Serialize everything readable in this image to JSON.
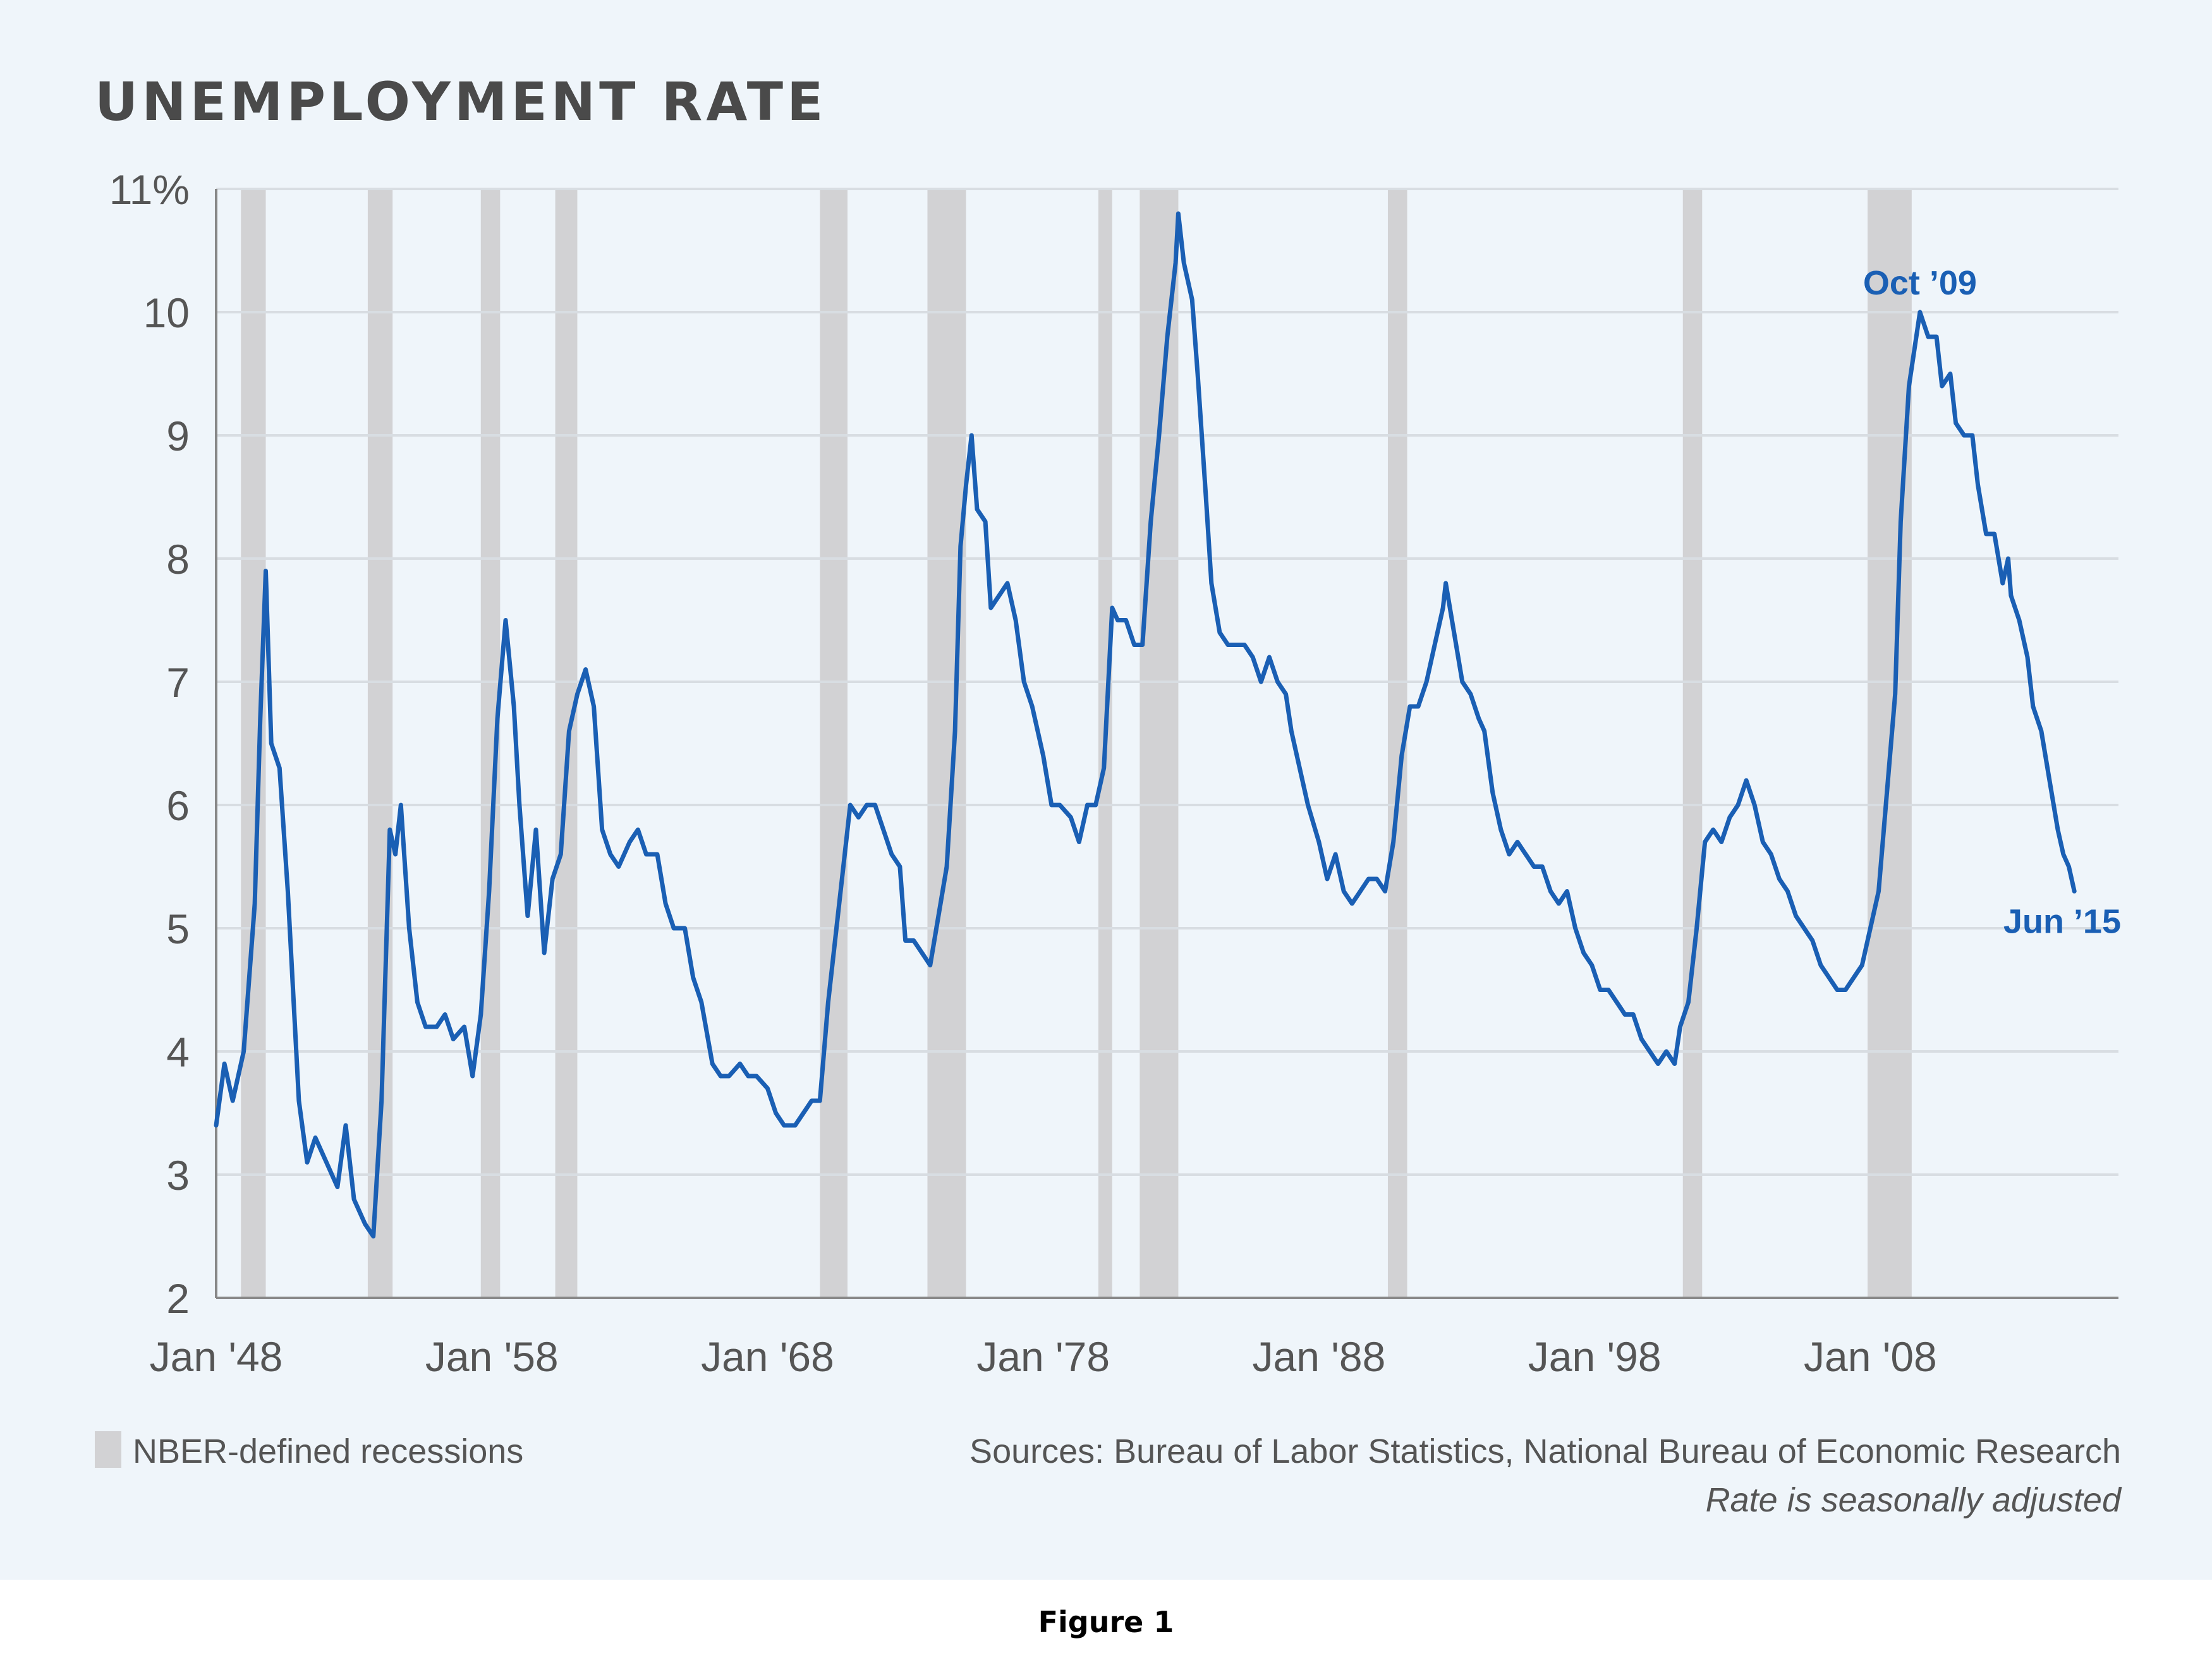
{
  "caption": "Figure 1",
  "legend": {
    "label": "NBER-defined recessions"
  },
  "footer": {
    "sources": "Sources: Bureau of Labor Statistics, National Bureau of Economic Research",
    "note": "Rate is seasonally adjusted"
  },
  "colors": {
    "line": "#1a5fb4",
    "recession": "#d2d2d4",
    "grid": "#d8dde2",
    "axis": "#888888",
    "background": "#eff5fa"
  },
  "chart_data": {
    "type": "line",
    "title": "UNEMPLOYMENT RATE",
    "xlabel": "",
    "ylabel": "",
    "ylim": [
      2,
      11
    ],
    "xlim": [
      1948.0,
      2017.0
    ],
    "y_ticks": [
      {
        "value": 2,
        "label": "2"
      },
      {
        "value": 3,
        "label": "3"
      },
      {
        "value": 4,
        "label": "4"
      },
      {
        "value": 5,
        "label": "5"
      },
      {
        "value": 6,
        "label": "6"
      },
      {
        "value": 7,
        "label": "7"
      },
      {
        "value": 8,
        "label": "8"
      },
      {
        "value": 9,
        "label": "9"
      },
      {
        "value": 10,
        "label": "10"
      },
      {
        "value": 11,
        "label": "11%"
      }
    ],
    "x_ticks": [
      {
        "value": 1948.0,
        "label": "Jan '48"
      },
      {
        "value": 1958.0,
        "label": "Jan '58"
      },
      {
        "value": 1968.0,
        "label": "Jan '68"
      },
      {
        "value": 1978.0,
        "label": "Jan '78"
      },
      {
        "value": 1988.0,
        "label": "Jan '88"
      },
      {
        "value": 1998.0,
        "label": "Jan '98"
      },
      {
        "value": 2008.0,
        "label": "Jan '08"
      }
    ],
    "grid": true,
    "legend_position": "bottom-left",
    "recessions": [
      [
        1948.9,
        1949.8
      ],
      [
        1953.5,
        1954.4
      ],
      [
        1957.6,
        1958.3
      ],
      [
        1960.3,
        1961.1
      ],
      [
        1969.9,
        1970.9
      ],
      [
        1973.8,
        1975.2
      ],
      [
        1980.0,
        1980.5
      ],
      [
        1981.5,
        1982.9
      ],
      [
        1990.5,
        1991.2
      ],
      [
        2001.2,
        2001.9
      ],
      [
        2007.9,
        2009.5
      ]
    ],
    "series": [
      {
        "values": [
          [
            1948.0,
            3.4
          ],
          [
            1948.3,
            3.9
          ],
          [
            1948.6,
            3.6
          ],
          [
            1949.0,
            4.0
          ],
          [
            1949.4,
            5.2
          ],
          [
            1949.6,
            6.7
          ],
          [
            1949.8,
            7.9
          ],
          [
            1950.0,
            6.5
          ],
          [
            1950.3,
            6.3
          ],
          [
            1950.6,
            5.3
          ],
          [
            1951.0,
            3.6
          ],
          [
            1951.3,
            3.1
          ],
          [
            1951.6,
            3.3
          ],
          [
            1952.0,
            3.1
          ],
          [
            1952.4,
            2.9
          ],
          [
            1952.7,
            3.4
          ],
          [
            1953.0,
            2.8
          ],
          [
            1953.4,
            2.6
          ],
          [
            1953.7,
            2.5
          ],
          [
            1954.0,
            3.6
          ],
          [
            1954.3,
            5.8
          ],
          [
            1954.5,
            5.6
          ],
          [
            1954.7,
            6.0
          ],
          [
            1955.0,
            5.0
          ],
          [
            1955.3,
            4.4
          ],
          [
            1955.6,
            4.2
          ],
          [
            1956.0,
            4.2
          ],
          [
            1956.3,
            4.3
          ],
          [
            1956.6,
            4.1
          ],
          [
            1957.0,
            4.2
          ],
          [
            1957.3,
            3.8
          ],
          [
            1957.6,
            4.3
          ],
          [
            1957.9,
            5.3
          ],
          [
            1958.2,
            6.7
          ],
          [
            1958.5,
            7.5
          ],
          [
            1958.8,
            6.8
          ],
          [
            1959.0,
            6.0
          ],
          [
            1959.3,
            5.1
          ],
          [
            1959.6,
            5.8
          ],
          [
            1959.9,
            4.8
          ],
          [
            1960.2,
            5.4
          ],
          [
            1960.5,
            5.6
          ],
          [
            1960.8,
            6.6
          ],
          [
            1961.1,
            6.9
          ],
          [
            1961.4,
            7.1
          ],
          [
            1961.7,
            6.8
          ],
          [
            1962.0,
            5.8
          ],
          [
            1962.3,
            5.6
          ],
          [
            1962.6,
            5.5
          ],
          [
            1963.0,
            5.7
          ],
          [
            1963.3,
            5.8
          ],
          [
            1963.6,
            5.6
          ],
          [
            1964.0,
            5.6
          ],
          [
            1964.3,
            5.2
          ],
          [
            1964.6,
            5.0
          ],
          [
            1965.0,
            5.0
          ],
          [
            1965.3,
            4.6
          ],
          [
            1965.6,
            4.4
          ],
          [
            1966.0,
            3.9
          ],
          [
            1966.3,
            3.8
          ],
          [
            1966.6,
            3.8
          ],
          [
            1967.0,
            3.9
          ],
          [
            1967.3,
            3.8
          ],
          [
            1967.6,
            3.8
          ],
          [
            1968.0,
            3.7
          ],
          [
            1968.3,
            3.5
          ],
          [
            1968.6,
            3.4
          ],
          [
            1969.0,
            3.4
          ],
          [
            1969.3,
            3.5
          ],
          [
            1969.6,
            3.6
          ],
          [
            1969.9,
            3.6
          ],
          [
            1970.2,
            4.4
          ],
          [
            1970.5,
            5.0
          ],
          [
            1970.8,
            5.6
          ],
          [
            1971.0,
            6.0
          ],
          [
            1971.3,
            5.9
          ],
          [
            1971.6,
            6.0
          ],
          [
            1971.9,
            6.0
          ],
          [
            1972.2,
            5.8
          ],
          [
            1972.5,
            5.6
          ],
          [
            1972.8,
            5.5
          ],
          [
            1973.0,
            4.9
          ],
          [
            1973.3,
            4.9
          ],
          [
            1973.6,
            4.8
          ],
          [
            1973.9,
            4.7
          ],
          [
            1974.2,
            5.1
          ],
          [
            1974.5,
            5.5
          ],
          [
            1974.8,
            6.6
          ],
          [
            1975.0,
            8.1
          ],
          [
            1975.2,
            8.6
          ],
          [
            1975.4,
            9.0
          ],
          [
            1975.6,
            8.4
          ],
          [
            1975.9,
            8.3
          ],
          [
            1976.1,
            7.6
          ],
          [
            1976.4,
            7.7
          ],
          [
            1976.7,
            7.8
          ],
          [
            1977.0,
            7.5
          ],
          [
            1977.3,
            7.0
          ],
          [
            1977.6,
            6.8
          ],
          [
            1978.0,
            6.4
          ],
          [
            1978.3,
            6.0
          ],
          [
            1978.6,
            6.0
          ],
          [
            1979.0,
            5.9
          ],
          [
            1979.3,
            5.7
          ],
          [
            1979.6,
            6.0
          ],
          [
            1979.9,
            6.0
          ],
          [
            1980.2,
            6.3
          ],
          [
            1980.5,
            7.6
          ],
          [
            1980.7,
            7.5
          ],
          [
            1981.0,
            7.5
          ],
          [
            1981.3,
            7.3
          ],
          [
            1981.6,
            7.3
          ],
          [
            1981.9,
            8.3
          ],
          [
            1982.2,
            9.0
          ],
          [
            1982.5,
            9.8
          ],
          [
            1982.8,
            10.4
          ],
          [
            1982.9,
            10.8
          ],
          [
            1983.1,
            10.4
          ],
          [
            1983.4,
            10.1
          ],
          [
            1983.6,
            9.5
          ],
          [
            1983.9,
            8.5
          ],
          [
            1984.1,
            7.8
          ],
          [
            1984.4,
            7.4
          ],
          [
            1984.7,
            7.3
          ],
          [
            1985.0,
            7.3
          ],
          [
            1985.3,
            7.3
          ],
          [
            1985.6,
            7.2
          ],
          [
            1985.9,
            7.0
          ],
          [
            1986.2,
            7.2
          ],
          [
            1986.5,
            7.0
          ],
          [
            1986.8,
            6.9
          ],
          [
            1987.0,
            6.6
          ],
          [
            1987.3,
            6.3
          ],
          [
            1987.6,
            6.0
          ],
          [
            1988.0,
            5.7
          ],
          [
            1988.3,
            5.4
          ],
          [
            1988.6,
            5.6
          ],
          [
            1988.9,
            5.3
          ],
          [
            1989.2,
            5.2
          ],
          [
            1989.5,
            5.3
          ],
          [
            1989.8,
            5.4
          ],
          [
            1990.1,
            5.4
          ],
          [
            1990.4,
            5.3
          ],
          [
            1990.7,
            5.7
          ],
          [
            1991.0,
            6.4
          ],
          [
            1991.3,
            6.8
          ],
          [
            1991.6,
            6.8
          ],
          [
            1991.9,
            7.0
          ],
          [
            1992.2,
            7.3
          ],
          [
            1992.5,
            7.6
          ],
          [
            1992.6,
            7.8
          ],
          [
            1992.9,
            7.4
          ],
          [
            1993.2,
            7.0
          ],
          [
            1993.5,
            6.9
          ],
          [
            1993.8,
            6.7
          ],
          [
            1994.0,
            6.6
          ],
          [
            1994.3,
            6.1
          ],
          [
            1994.6,
            5.8
          ],
          [
            1994.9,
            5.6
          ],
          [
            1995.2,
            5.7
          ],
          [
            1995.5,
            5.6
          ],
          [
            1995.8,
            5.5
          ],
          [
            1996.1,
            5.5
          ],
          [
            1996.4,
            5.3
          ],
          [
            1996.7,
            5.2
          ],
          [
            1997.0,
            5.3
          ],
          [
            1997.3,
            5.0
          ],
          [
            1997.6,
            4.8
          ],
          [
            1997.9,
            4.7
          ],
          [
            1998.2,
            4.5
          ],
          [
            1998.5,
            4.5
          ],
          [
            1998.8,
            4.4
          ],
          [
            1999.1,
            4.3
          ],
          [
            1999.4,
            4.3
          ],
          [
            1999.7,
            4.1
          ],
          [
            2000.0,
            4.0
          ],
          [
            2000.3,
            3.9
          ],
          [
            2000.6,
            4.0
          ],
          [
            2000.9,
            3.9
          ],
          [
            2001.1,
            4.2
          ],
          [
            2001.4,
            4.4
          ],
          [
            2001.7,
            5.0
          ],
          [
            2002.0,
            5.7
          ],
          [
            2002.3,
            5.8
          ],
          [
            2002.6,
            5.7
          ],
          [
            2002.9,
            5.9
          ],
          [
            2003.2,
            6.0
          ],
          [
            2003.5,
            6.2
          ],
          [
            2003.8,
            6.0
          ],
          [
            2004.1,
            5.7
          ],
          [
            2004.4,
            5.6
          ],
          [
            2004.7,
            5.4
          ],
          [
            2005.0,
            5.3
          ],
          [
            2005.3,
            5.1
          ],
          [
            2005.6,
            5.0
          ],
          [
            2005.9,
            4.9
          ],
          [
            2006.2,
            4.7
          ],
          [
            2006.5,
            4.6
          ],
          [
            2006.8,
            4.5
          ],
          [
            2007.1,
            4.5
          ],
          [
            2007.4,
            4.6
          ],
          [
            2007.7,
            4.7
          ],
          [
            2008.0,
            5.0
          ],
          [
            2008.3,
            5.3
          ],
          [
            2008.6,
            6.1
          ],
          [
            2008.9,
            6.9
          ],
          [
            2009.1,
            8.3
          ],
          [
            2009.4,
            9.4
          ],
          [
            2009.6,
            9.7
          ],
          [
            2009.8,
            10.0
          ],
          [
            2010.1,
            9.8
          ],
          [
            2010.4,
            9.8
          ],
          [
            2010.6,
            9.4
          ],
          [
            2010.9,
            9.5
          ],
          [
            2011.1,
            9.1
          ],
          [
            2011.4,
            9.0
          ],
          [
            2011.7,
            9.0
          ],
          [
            2011.9,
            8.6
          ],
          [
            2012.2,
            8.2
          ],
          [
            2012.5,
            8.2
          ],
          [
            2012.8,
            7.8
          ],
          [
            2013.0,
            8.0
          ],
          [
            2013.1,
            7.7
          ],
          [
            2013.4,
            7.5
          ],
          [
            2013.7,
            7.2
          ],
          [
            2013.9,
            6.8
          ],
          [
            2014.2,
            6.6
          ],
          [
            2014.5,
            6.2
          ],
          [
            2014.8,
            5.8
          ],
          [
            2015.0,
            5.6
          ],
          [
            2015.2,
            5.5
          ],
          [
            2015.4,
            5.3
          ]
        ]
      }
    ],
    "annotations": [
      {
        "text": "Oct ’09",
        "x": 2009.8,
        "y": 10.0
      },
      {
        "text": "Jun ’15",
        "x": 2015.4,
        "y": 5.3
      }
    ]
  }
}
